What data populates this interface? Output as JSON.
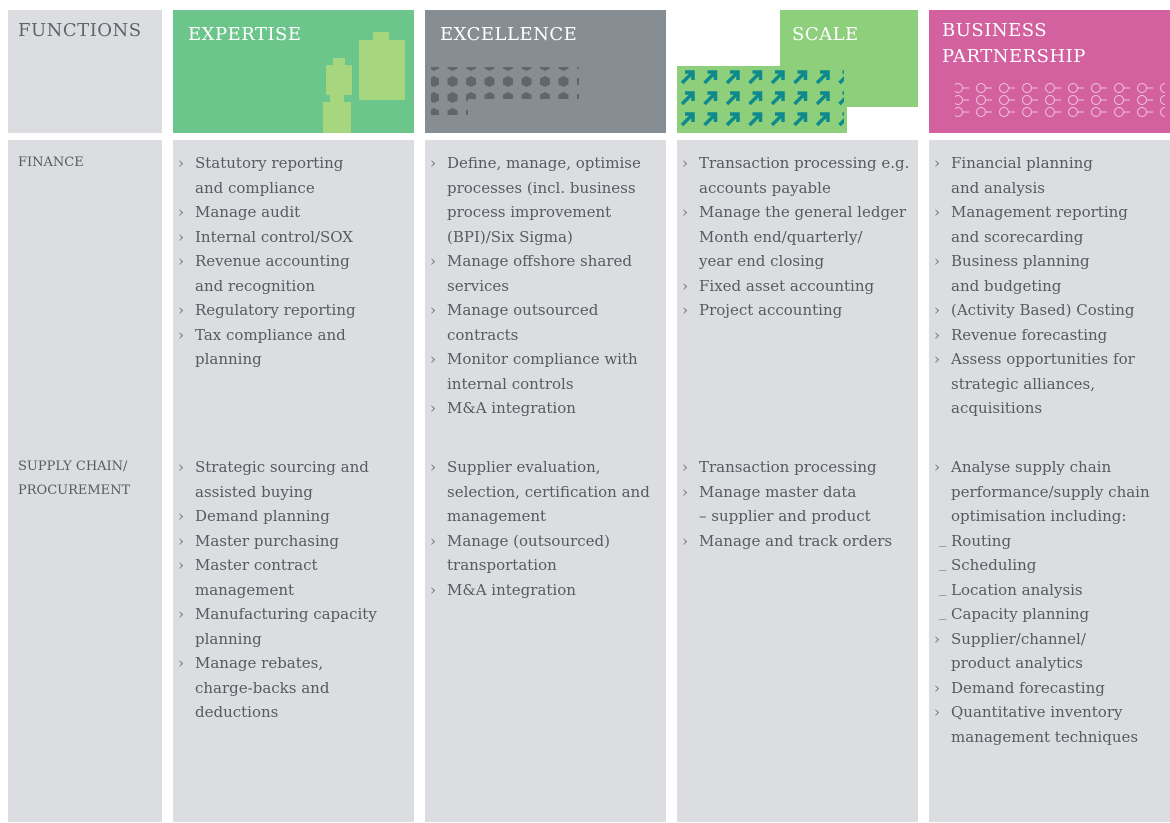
{
  "header": {
    "columns": [
      "FUNCTIONS",
      "EXPERTISE",
      "EXCELLENCE",
      "SCALE",
      "BUSINESS\nPARTNERSHIP"
    ]
  },
  "rows": [
    {
      "label": "FINANCE",
      "cells": [
        [
          {
            "text": "Statutory reporting\nand compliance"
          },
          {
            "text": "Manage audit"
          },
          {
            "text": "Internal control/SOX"
          },
          {
            "text": "Revenue accounting\nand recognition"
          },
          {
            "text": "Regulatory reporting"
          },
          {
            "text": "Tax compliance and\nplanning"
          }
        ],
        [
          {
            "text": "Define, manage, optimise\nprocesses (incl. business\nprocess improvement\n(BPI)/Six Sigma)"
          },
          {
            "text": "Manage offshore shared\nservices"
          },
          {
            "text": "Manage outsourced\ncontracts"
          },
          {
            "text": "Monitor compliance with\ninternal controls"
          },
          {
            "text": "M&A integration"
          }
        ],
        [
          {
            "text": "Transaction processing e.g.\naccounts payable"
          },
          {
            "text": "Manage the general ledger\nMonth end/quarterly/\nyear end closing"
          },
          {
            "text": "Fixed asset accounting"
          },
          {
            "text": "Project accounting"
          }
        ],
        [
          {
            "text": "Financial planning\nand analysis"
          },
          {
            "text": "Management reporting\nand scorecarding"
          },
          {
            "text": "Business planning\nand budgeting"
          },
          {
            "text": "(Activity Based) Costing"
          },
          {
            "text": "Revenue forecasting"
          },
          {
            "text": "Assess opportunities for\nstrategic alliances,\nacquisitions"
          }
        ]
      ]
    },
    {
      "label": "SUPPLY CHAIN/\nPROCUREMENT",
      "cells": [
        [
          {
            "text": "Strategic sourcing and\nassisted buying"
          },
          {
            "text": "Demand planning"
          },
          {
            "text": "Master purchasing"
          },
          {
            "text": "Master contract\nmanagement"
          },
          {
            "text": "Manufacturing capacity\nplanning"
          },
          {
            "text": "Manage rebates,\ncharge-backs and\ndeductions"
          }
        ],
        [
          {
            "text": "Supplier evaluation,\nselection, certification and\nmanagement"
          },
          {
            "text": "Manage (outsourced)\ntransportation"
          },
          {
            "text": "M&A integration"
          }
        ],
        [
          {
            "text": "Transaction processing"
          },
          {
            "text": "Manage master data\n– supplier and product"
          },
          {
            "text": "Manage and track orders"
          }
        ],
        [
          {
            "text": "Analyse supply chain\nperformance/supply chain\noptimisation including:",
            "items": [
              {
                "text": "Routing"
              },
              {
                "text": "Scheduling"
              },
              {
                "text": "Location analysis"
              },
              {
                "text": "Capacity planning"
              }
            ]
          },
          {
            "text": "Supplier/channel/\nproduct analytics"
          },
          {
            "text": "Demand forecasting"
          },
          {
            "text": "Quantitative inventory\nmanagement techniques"
          }
        ]
      ]
    }
  ]
}
